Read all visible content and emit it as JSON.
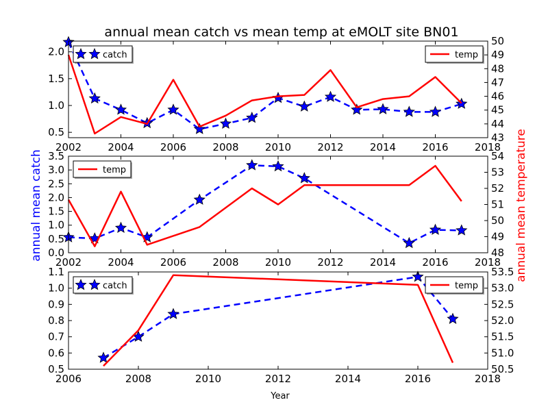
{
  "title": "annual mean catch vs mean temp at eMOLT site BN01",
  "xlabel": "Year",
  "ylabel_left": "annual mean catch",
  "ylabel_right": "annual mean temperature",
  "colors": {
    "catch": "#0000ff",
    "temp": "#ff0000"
  },
  "chart_data": [
    {
      "type": "line",
      "xlim": [
        2002,
        2018
      ],
      "xticks": [
        2002,
        2004,
        2006,
        2008,
        2010,
        2012,
        2014,
        2016,
        2018
      ],
      "ylim": [
        0.4,
        2.2
      ],
      "yticks": [
        "0.5",
        "1.0",
        "1.5",
        "2.0"
      ],
      "y2lim": [
        43,
        50
      ],
      "y2ticks": [
        "43",
        "44",
        "45",
        "46",
        "47",
        "48",
        "49",
        "50"
      ],
      "series": [
        {
          "name": "catch",
          "axis": "left",
          "style": "dashed-star",
          "x": [
            2002,
            2003,
            2004,
            2005,
            2006,
            2007,
            2008,
            2009,
            2010,
            2011,
            2012,
            2013,
            2014,
            2015,
            2016,
            2017
          ],
          "y": [
            2.18,
            1.13,
            0.92,
            0.67,
            0.92,
            0.56,
            0.66,
            0.77,
            1.14,
            0.98,
            1.16,
            0.92,
            0.93,
            0.88,
            0.88,
            1.03
          ]
        },
        {
          "name": "temp",
          "axis": "right",
          "style": "solid",
          "x": [
            2002,
            2003,
            2004,
            2005,
            2006,
            2007,
            2008,
            2009,
            2010,
            2011,
            2012,
            2013,
            2014,
            2015,
            2016,
            2017
          ],
          "y": [
            49.0,
            43.3,
            44.5,
            44.0,
            47.2,
            43.8,
            44.6,
            45.7,
            46.0,
            46.1,
            47.9,
            45.2,
            45.8,
            46.0,
            47.4,
            45.5
          ]
        }
      ],
      "legends": [
        {
          "series": "catch",
          "label": "catch",
          "position": "upper-left"
        },
        {
          "series": "temp",
          "label": "temp",
          "position": "upper-right"
        }
      ]
    },
    {
      "type": "line",
      "xlim": [
        2002,
        2018
      ],
      "xticks": [
        2002,
        2004,
        2006,
        2008,
        2010,
        2012,
        2014,
        2016,
        2018
      ],
      "ylim": [
        0.0,
        3.5
      ],
      "yticks": [
        "0.0",
        "0.5",
        "1.0",
        "1.5",
        "2.0",
        "2.5",
        "3.0",
        "3.5"
      ],
      "y2lim": [
        48,
        54
      ],
      "y2ticks": [
        "48",
        "49",
        "50",
        "51",
        "52",
        "53",
        "54"
      ],
      "series": [
        {
          "name": "catch",
          "axis": "left",
          "style": "dashed-star",
          "x": [
            2002,
            2003,
            2004,
            2005,
            2007,
            2009,
            2010,
            2011,
            2015,
            2016,
            2017
          ],
          "y": [
            0.56,
            0.52,
            0.9,
            0.56,
            1.92,
            3.17,
            3.13,
            2.7,
            0.35,
            0.83,
            0.81
          ]
        },
        {
          "name": "temp",
          "axis": "right",
          "style": "solid",
          "x": [
            2002,
            2003,
            2004,
            2005,
            2007,
            2009,
            2010,
            2011,
            2015,
            2016,
            2017
          ],
          "y": [
            51.3,
            48.4,
            51.8,
            48.5,
            49.6,
            52.0,
            51.0,
            52.2,
            52.2,
            53.4,
            51.2
          ]
        }
      ],
      "legends": [
        {
          "series": "temp",
          "label": "temp",
          "position": "upper-left"
        }
      ]
    },
    {
      "type": "line",
      "xlim": [
        2006,
        2018
      ],
      "xticks": [
        2006,
        2008,
        2010,
        2012,
        2014,
        2016,
        2018
      ],
      "ylim": [
        0.5,
        1.1
      ],
      "yticks": [
        "0.5",
        "0.6",
        "0.7",
        "0.8",
        "0.9",
        "1.0",
        "1.1"
      ],
      "y2lim": [
        50.5,
        53.5
      ],
      "y2ticks": [
        "50.5",
        "51.0",
        "51.5",
        "52.0",
        "52.5",
        "53.0",
        "53.5"
      ],
      "series": [
        {
          "name": "catch",
          "axis": "left",
          "style": "dashed-star",
          "x": [
            2007,
            2008,
            2009,
            2016,
            2017
          ],
          "y": [
            0.57,
            0.7,
            0.84,
            1.07,
            0.81
          ]
        },
        {
          "name": "temp",
          "axis": "right",
          "style": "solid",
          "x": [
            2007,
            2008,
            2009,
            2016,
            2017
          ],
          "y": [
            50.6,
            51.7,
            53.4,
            53.1,
            50.7
          ]
        }
      ],
      "legends": [
        {
          "series": "catch",
          "label": "catch",
          "position": "upper-left"
        },
        {
          "series": "temp",
          "label": "temp",
          "position": "upper-right"
        }
      ]
    }
  ]
}
